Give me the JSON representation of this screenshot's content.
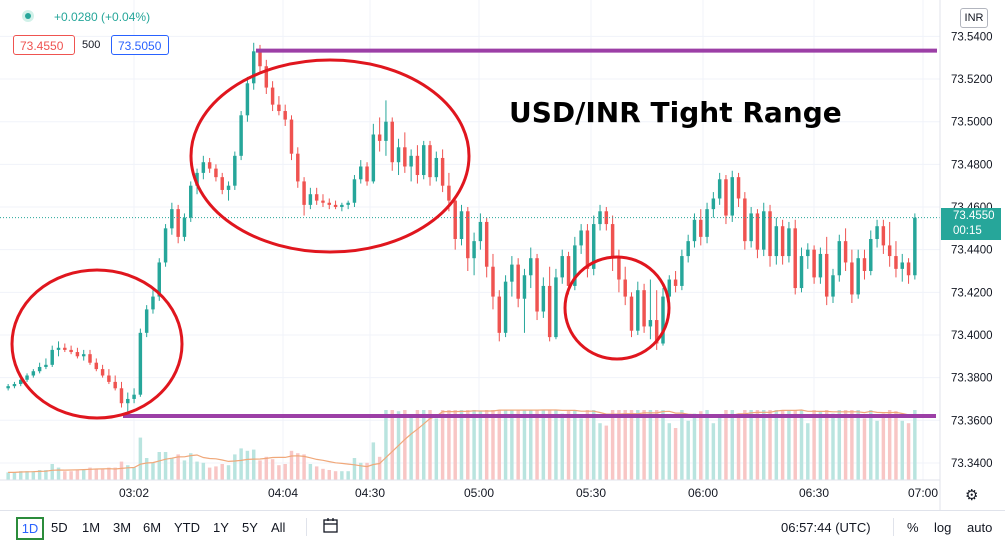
{
  "header": {
    "change": "+0.0280 (+0.04%)",
    "sell_price": "73.4550",
    "quantity": "500",
    "buy_price": "73.5050"
  },
  "symbol_badge": "INR",
  "current_price": {
    "price": "73.4550",
    "countdown": "00:15"
  },
  "annotation_title": "USD/INR Tight Range",
  "bottom": {
    "ranges": [
      "1D",
      "5D",
      "1M",
      "3M",
      "6M",
      "YTD",
      "1Y",
      "5Y",
      "All"
    ],
    "clock": "06:57:44 (UTC)",
    "percent": "%",
    "log": "log",
    "auto": "auto"
  },
  "colors": {
    "up": "#26a69a",
    "down": "#ef5350",
    "range_line": "#9c3fa6",
    "circle": "#e0161e",
    "volume_ma": "#f0a87a"
  },
  "chart_data": {
    "type": "candlestick",
    "title": "USD/INR Tight Range",
    "y_ticks": [
      "73.5400",
      "73.5200",
      "73.5000",
      "73.4800",
      "73.4600",
      "73.4400",
      "73.4200",
      "73.4000",
      "73.3800",
      "73.3600",
      "73.3400"
    ],
    "x_ticks": [
      "03:02",
      "04:04",
      "04:30",
      "05:00",
      "05:30",
      "06:00",
      "06:30",
      "07:00"
    ],
    "ylim": [
      73.332,
      73.5505
    ],
    "range_high": 73.5333,
    "range_low": 73.362,
    "last_price": 73.455,
    "volume_ma": "shown",
    "grid": true,
    "candles": [
      [
        73.375,
        73.377,
        73.374,
        73.376
      ],
      [
        73.376,
        73.378,
        73.375,
        73.377
      ],
      [
        73.377,
        73.38,
        73.376,
        73.379
      ],
      [
        73.379,
        73.382,
        73.378,
        73.381
      ],
      [
        73.381,
        73.384,
        73.38,
        73.383
      ],
      [
        73.383,
        73.387,
        73.382,
        73.385
      ],
      [
        73.385,
        73.389,
        73.384,
        73.386
      ],
      [
        73.386,
        73.395,
        73.385,
        73.393
      ],
      [
        73.393,
        73.397,
        73.39,
        73.394
      ],
      [
        73.394,
        73.396,
        73.392,
        73.393
      ],
      [
        73.393,
        73.395,
        73.391,
        73.392
      ],
      [
        73.392,
        73.394,
        73.389,
        73.39
      ],
      [
        73.39,
        73.393,
        73.388,
        73.391
      ],
      [
        73.391,
        73.393,
        73.386,
        73.387
      ],
      [
        73.387,
        73.389,
        73.383,
        73.384
      ],
      [
        73.384,
        73.386,
        73.38,
        73.381
      ],
      [
        73.381,
        73.384,
        73.377,
        73.378
      ],
      [
        73.378,
        73.381,
        73.374,
        73.375
      ],
      [
        73.375,
        73.378,
        73.366,
        73.368
      ],
      [
        73.368,
        73.373,
        73.364,
        73.37
      ],
      [
        73.37,
        73.375,
        73.368,
        73.372
      ],
      [
        73.372,
        73.403,
        73.371,
        73.401
      ],
      [
        73.401,
        73.414,
        73.399,
        73.412
      ],
      [
        73.412,
        73.421,
        73.41,
        73.418
      ],
      [
        73.418,
        73.436,
        73.416,
        73.434
      ],
      [
        73.434,
        73.452,
        73.432,
        73.45
      ],
      [
        73.45,
        73.462,
        73.447,
        73.459
      ],
      [
        73.459,
        73.461,
        73.443,
        73.446
      ],
      [
        73.446,
        73.457,
        73.444,
        73.455
      ],
      [
        73.455,
        73.472,
        73.453,
        73.47
      ],
      [
        73.47,
        73.478,
        73.466,
        73.476
      ],
      [
        73.476,
        73.484,
        73.473,
        73.481
      ],
      [
        73.481,
        73.483,
        73.476,
        73.478
      ],
      [
        73.478,
        73.48,
        73.472,
        73.474
      ],
      [
        73.474,
        73.476,
        73.466,
        73.468
      ],
      [
        73.468,
        73.472,
        73.463,
        73.47
      ],
      [
        73.47,
        73.486,
        73.468,
        73.484
      ],
      [
        73.484,
        73.505,
        73.482,
        73.503
      ],
      [
        73.503,
        73.521,
        73.5,
        73.518
      ],
      [
        73.518,
        73.537,
        73.515,
        73.533
      ],
      [
        73.533,
        73.536,
        73.523,
        73.526
      ],
      [
        73.526,
        73.529,
        73.513,
        73.516
      ],
      [
        73.516,
        73.519,
        73.505,
        73.508
      ],
      [
        73.508,
        73.512,
        73.503,
        73.505
      ],
      [
        73.505,
        73.508,
        73.498,
        73.501
      ],
      [
        73.501,
        73.503,
        73.482,
        73.485
      ],
      [
        73.485,
        73.488,
        73.469,
        73.472
      ],
      [
        73.472,
        73.474,
        73.456,
        73.461
      ],
      [
        73.461,
        73.469,
        73.459,
        73.466
      ],
      [
        73.466,
        73.469,
        73.461,
        73.463
      ],
      [
        73.463,
        73.466,
        73.46,
        73.462
      ],
      [
        73.462,
        73.464,
        73.459,
        73.461
      ],
      [
        73.461,
        73.463,
        73.459,
        73.46
      ],
      [
        73.46,
        73.462,
        73.458,
        73.461
      ],
      [
        73.461,
        73.463,
        73.459,
        73.462
      ],
      [
        73.462,
        73.475,
        73.46,
        73.473
      ],
      [
        73.473,
        73.482,
        73.471,
        73.479
      ],
      [
        73.479,
        73.481,
        73.47,
        73.472
      ],
      [
        73.472,
        73.499,
        73.471,
        73.494
      ],
      [
        73.494,
        73.502,
        73.486,
        73.491
      ],
      [
        73.491,
        73.51,
        73.484,
        73.5
      ],
      [
        73.5,
        73.502,
        73.477,
        73.481
      ],
      [
        73.481,
        73.492,
        73.475,
        73.488
      ],
      [
        73.488,
        73.495,
        73.476,
        73.479
      ],
      [
        73.479,
        73.487,
        73.472,
        73.484
      ],
      [
        73.484,
        73.489,
        73.471,
        73.475
      ],
      [
        73.475,
        73.491,
        73.473,
        73.489
      ],
      [
        73.489,
        73.491,
        73.47,
        73.474
      ],
      [
        73.474,
        73.486,
        73.472,
        73.483
      ],
      [
        73.483,
        73.487,
        73.467,
        73.47
      ],
      [
        73.47,
        73.476,
        73.458,
        73.463
      ],
      [
        73.463,
        73.465,
        73.44,
        73.445
      ],
      [
        73.445,
        73.461,
        73.442,
        73.458
      ],
      [
        73.458,
        73.46,
        73.43,
        73.436
      ],
      [
        73.436,
        73.448,
        73.428,
        73.444
      ],
      [
        73.444,
        73.457,
        73.44,
        73.453
      ],
      [
        73.453,
        73.455,
        73.427,
        73.432
      ],
      [
        73.432,
        73.438,
        73.412,
        73.418
      ],
      [
        73.418,
        73.421,
        73.397,
        73.401
      ],
      [
        73.401,
        73.428,
        73.399,
        73.425
      ],
      [
        73.425,
        73.437,
        73.418,
        73.433
      ],
      [
        73.433,
        73.436,
        73.413,
        73.417
      ],
      [
        73.417,
        73.431,
        73.401,
        73.428
      ],
      [
        73.428,
        73.441,
        73.422,
        73.436
      ],
      [
        73.436,
        73.438,
        73.407,
        73.411
      ],
      [
        73.411,
        73.427,
        73.408,
        73.423
      ],
      [
        73.423,
        73.432,
        73.397,
        73.399
      ],
      [
        73.399,
        73.431,
        73.398,
        73.427
      ],
      [
        73.427,
        73.44,
        73.424,
        73.437
      ],
      [
        73.437,
        73.439,
        73.419,
        73.423
      ],
      [
        73.423,
        73.446,
        73.421,
        73.442
      ],
      [
        73.442,
        73.452,
        73.438,
        73.449
      ],
      [
        73.449,
        73.452,
        73.427,
        73.431
      ],
      [
        73.431,
        73.456,
        73.428,
        73.452
      ],
      [
        73.452,
        73.461,
        73.449,
        73.458
      ],
      [
        73.458,
        73.46,
        73.449,
        73.452
      ],
      [
        73.452,
        73.456,
        73.43,
        73.436
      ],
      [
        73.436,
        73.44,
        73.42,
        73.426
      ],
      [
        73.426,
        73.432,
        73.414,
        73.418
      ],
      [
        73.418,
        73.42,
        73.399,
        73.402
      ],
      [
        73.402,
        73.425,
        73.4,
        73.421
      ],
      [
        73.421,
        73.424,
        73.401,
        73.404
      ],
      [
        73.404,
        73.426,
        73.398,
        73.407
      ],
      [
        73.407,
        73.421,
        73.393,
        73.396
      ],
      [
        73.396,
        73.422,
        73.395,
        73.418
      ],
      [
        73.418,
        73.428,
        73.416,
        73.426
      ],
      [
        73.426,
        73.43,
        73.42,
        73.423
      ],
      [
        73.423,
        73.44,
        73.421,
        73.437
      ],
      [
        73.437,
        73.447,
        73.434,
        73.444
      ],
      [
        73.444,
        73.457,
        73.441,
        73.454
      ],
      [
        73.454,
        73.459,
        73.442,
        73.446
      ],
      [
        73.446,
        73.462,
        73.443,
        73.459
      ],
      [
        73.459,
        73.467,
        73.455,
        73.464
      ],
      [
        73.464,
        73.476,
        73.461,
        73.473
      ],
      [
        73.473,
        73.475,
        73.452,
        73.456
      ],
      [
        73.456,
        73.477,
        73.453,
        73.474
      ],
      [
        73.474,
        73.476,
        73.46,
        73.464
      ],
      [
        73.464,
        73.467,
        73.44,
        73.444
      ],
      [
        73.444,
        73.46,
        73.441,
        73.457
      ],
      [
        73.457,
        73.459,
        73.436,
        73.44
      ],
      [
        73.44,
        73.462,
        73.437,
        73.458
      ],
      [
        73.458,
        73.461,
        73.432,
        73.437
      ],
      [
        73.437,
        73.455,
        73.433,
        73.451
      ],
      [
        73.451,
        73.454,
        73.433,
        73.437
      ],
      [
        73.437,
        73.453,
        73.434,
        73.45
      ],
      [
        73.45,
        73.454,
        73.419,
        73.422
      ],
      [
        73.422,
        73.441,
        73.42,
        73.437
      ],
      [
        73.437,
        73.443,
        73.431,
        73.44
      ],
      [
        73.44,
        73.442,
        73.424,
        73.427
      ],
      [
        73.427,
        73.441,
        73.424,
        73.438
      ],
      [
        73.438,
        73.446,
        73.414,
        73.418
      ],
      [
        73.418,
        73.431,
        73.415,
        73.428
      ],
      [
        73.428,
        73.447,
        73.425,
        73.444
      ],
      [
        73.444,
        73.45,
        73.43,
        73.434
      ],
      [
        73.434,
        73.44,
        73.415,
        73.419
      ],
      [
        73.419,
        73.44,
        73.417,
        73.436
      ],
      [
        73.436,
        73.44,
        73.426,
        73.43
      ],
      [
        73.43,
        73.449,
        73.428,
        73.445
      ],
      [
        73.445,
        73.454,
        73.441,
        73.451
      ],
      [
        73.451,
        73.454,
        73.438,
        73.442
      ],
      [
        73.442,
        73.453,
        73.432,
        73.437
      ],
      [
        73.437,
        73.444,
        73.427,
        73.431
      ],
      [
        73.431,
        73.438,
        73.425,
        73.434
      ],
      [
        73.434,
        73.436,
        73.424,
        73.428
      ],
      [
        73.428,
        73.457,
        73.426,
        73.455
      ]
    ]
  }
}
